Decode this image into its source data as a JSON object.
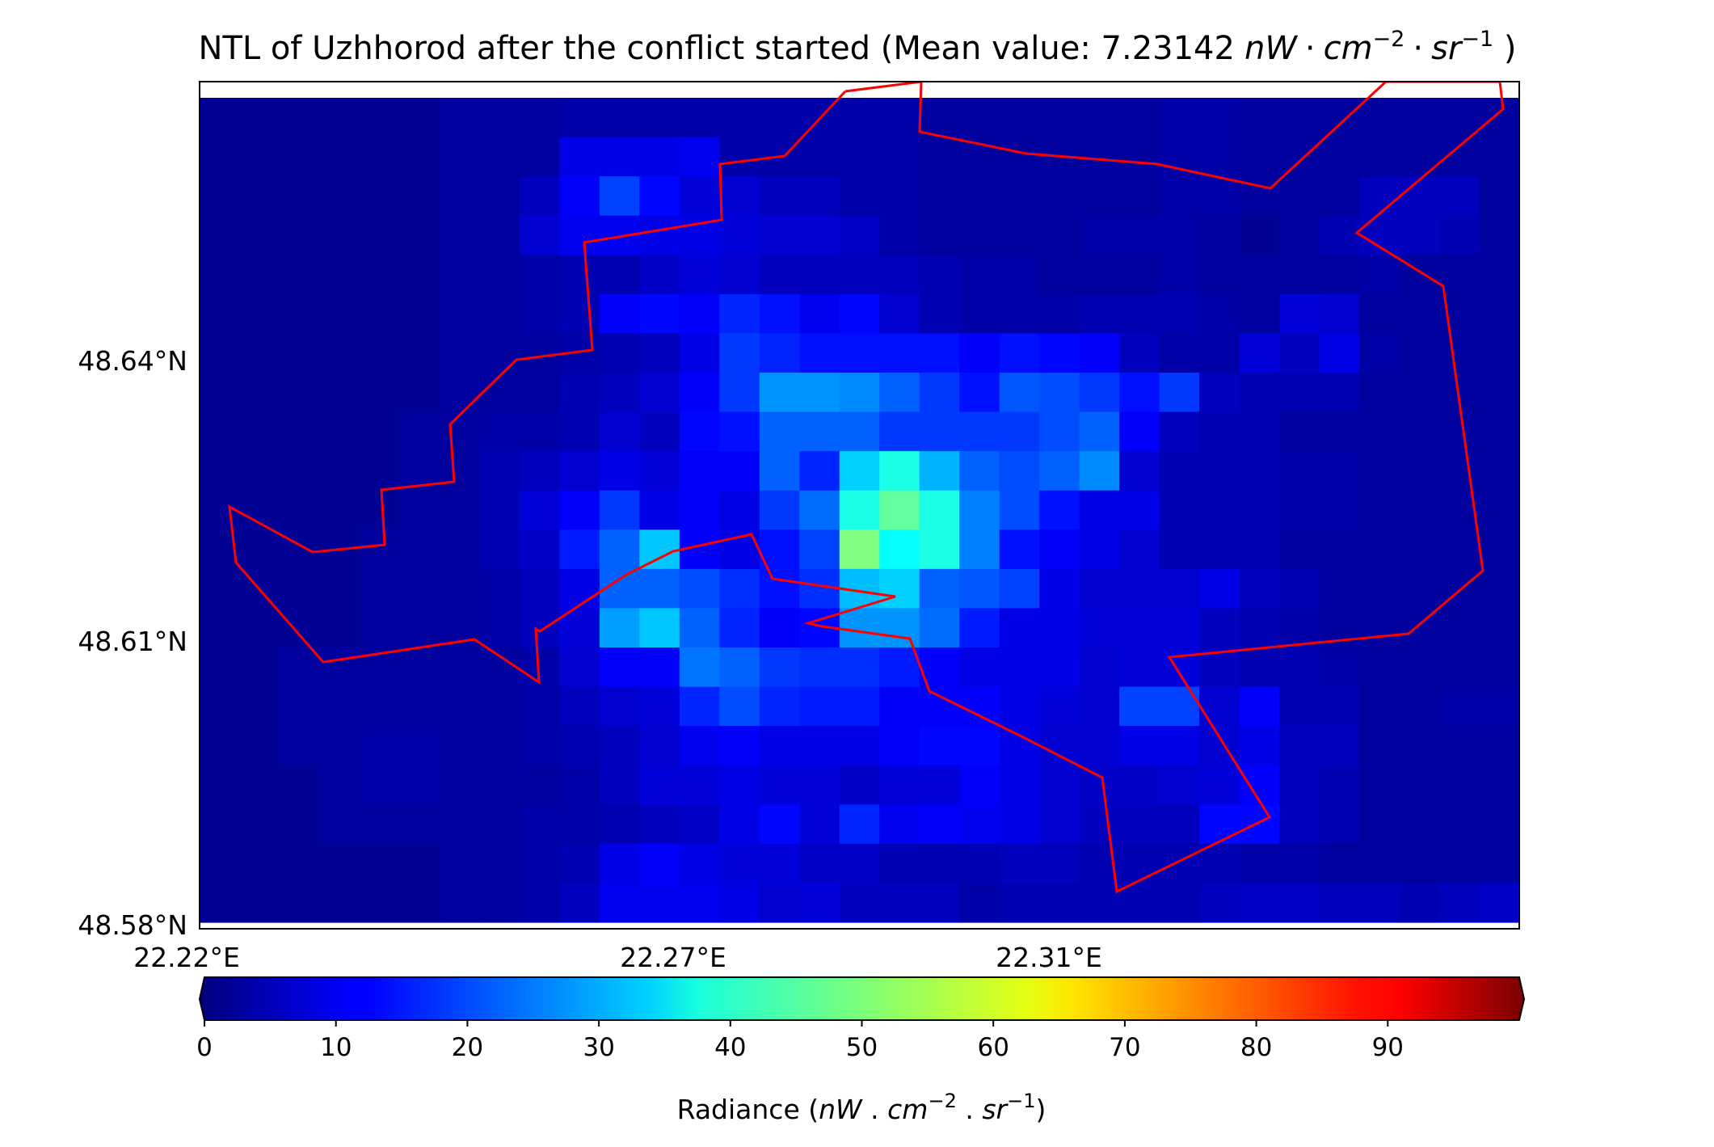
{
  "chart_data": {
    "type": "heatmap",
    "title": {
      "prefix": "NTL of Uzhhorod after the conflict started (Mean value: ",
      "value": "7.23142",
      "unit_nW": "nW",
      "unit_cm": "cm",
      "unit_sr": "sr",
      "exp_cm": "−2",
      "exp_sr": "−1",
      "dot": "·",
      "suffix": " )"
    },
    "x_ticks": [
      "22.22°E",
      "22.27°E",
      "22.31°E"
    ],
    "y_ticks": [
      "48.64°N",
      "48.61°N",
      "48.58°N"
    ],
    "colorbar": {
      "colormap": "jet",
      "vmin": 0,
      "vmax": 100,
      "extend": "both",
      "ticks": [
        0,
        10,
        20,
        30,
        40,
        50,
        60,
        70,
        80,
        90
      ],
      "label": {
        "prefix": "Radiance (",
        "nW": "nW",
        "sep": " . ",
        "cm": "cm",
        "exp_cm": "−2",
        "sr": "sr",
        "exp_sr": "−1",
        "suffix": ")"
      }
    },
    "boundary_color": "#ff0000",
    "grid": false,
    "rows": 21,
    "cols": 33,
    "values_note_rows_top_to_bottom": true,
    "values": [
      [
        2,
        2,
        2,
        2,
        2,
        2,
        3,
        3,
        3,
        4,
        4,
        4,
        4,
        4,
        4,
        4,
        4,
        4,
        3,
        3,
        3,
        3,
        3,
        3,
        4,
        4,
        3,
        3,
        3,
        3,
        3,
        3,
        3
      ],
      [
        2,
        2,
        2,
        2,
        2,
        2,
        3,
        3,
        3,
        10,
        10,
        10,
        11,
        4,
        4,
        4,
        4,
        4,
        3,
        3,
        3,
        3,
        3,
        3,
        4,
        4,
        3,
        3,
        3,
        3,
        3,
        3,
        3
      ],
      [
        2,
        2,
        2,
        2,
        2,
        2,
        3,
        3,
        6,
        12,
        19,
        13,
        9,
        8,
        6,
        6,
        4,
        4,
        3,
        3,
        3,
        3,
        3,
        3,
        4,
        4,
        3,
        3,
        3,
        6,
        6,
        6,
        3
      ],
      [
        2,
        2,
        2,
        2,
        2,
        2,
        3,
        3,
        8,
        11,
        11,
        10,
        10,
        9,
        8,
        8,
        7,
        4,
        3,
        3,
        3,
        3,
        4,
        4,
        4,
        3,
        2,
        3,
        5,
        6,
        6,
        5,
        3
      ],
      [
        2,
        2,
        2,
        2,
        2,
        2,
        3,
        3,
        4,
        5,
        5,
        7,
        9,
        8,
        6,
        6,
        6,
        6,
        5,
        4,
        4,
        3,
        3,
        3,
        4,
        3,
        3,
        3,
        3,
        4,
        3,
        3,
        3
      ],
      [
        2,
        2,
        2,
        2,
        2,
        2,
        3,
        3,
        4,
        5,
        12,
        13,
        12,
        16,
        14,
        11,
        13,
        8,
        5,
        4,
        4,
        4,
        5,
        5,
        5,
        4,
        3,
        9,
        8,
        3,
        3,
        3,
        3
      ],
      [
        2,
        2,
        2,
        2,
        2,
        2,
        3,
        3,
        3,
        4,
        5,
        6,
        10,
        18,
        16,
        14,
        14,
        14,
        14,
        12,
        14,
        13,
        12,
        6,
        4,
        4,
        9,
        6,
        10,
        4,
        3,
        3,
        3
      ],
      [
        2,
        2,
        2,
        2,
        2,
        2,
        3,
        3,
        3,
        5,
        6,
        8,
        12,
        18,
        27,
        27,
        26,
        22,
        18,
        14,
        21,
        20,
        18,
        14,
        18,
        6,
        5,
        5,
        5,
        3,
        3,
        3,
        3
      ],
      [
        2,
        2,
        2,
        2,
        2,
        3,
        3,
        4,
        4,
        5,
        8,
        6,
        13,
        14,
        22,
        22,
        22,
        18,
        18,
        18,
        18,
        20,
        22,
        12,
        6,
        5,
        5,
        3,
        3,
        3,
        3,
        3,
        3
      ],
      [
        2,
        2,
        2,
        2,
        2,
        3,
        3,
        5,
        6,
        8,
        10,
        9,
        12,
        12,
        22,
        16,
        33,
        40,
        30,
        22,
        20,
        22,
        26,
        8,
        5,
        5,
        5,
        4,
        4,
        3,
        3,
        3,
        3
      ],
      [
        2,
        2,
        2,
        2,
        2,
        3,
        3,
        5,
        9,
        12,
        18,
        10,
        12,
        10,
        18,
        23,
        40,
        47,
        40,
        25,
        20,
        14,
        10,
        10,
        5,
        5,
        5,
        4,
        4,
        3,
        3,
        3,
        3
      ],
      [
        2,
        2,
        2,
        2,
        3,
        3,
        3,
        5,
        7,
        15,
        22,
        32,
        12,
        10,
        14,
        19,
        50,
        38,
        40,
        25,
        14,
        12,
        10,
        8,
        5,
        5,
        5,
        3,
        3,
        3,
        3,
        3,
        3
      ],
      [
        2,
        2,
        2,
        2,
        3,
        3,
        3,
        4,
        6,
        10,
        22,
        22,
        20,
        17,
        14,
        17,
        31,
        33,
        22,
        21,
        19,
        10,
        8,
        8,
        8,
        10,
        6,
        5,
        3,
        3,
        3,
        3,
        3
      ],
      [
        2,
        2,
        2,
        2,
        3,
        3,
        3,
        4,
        6,
        9,
        28,
        32,
        22,
        16,
        12,
        13,
        27,
        27,
        23,
        15,
        10,
        10,
        9,
        9,
        9,
        6,
        5,
        4,
        3,
        3,
        3,
        3,
        3
      ],
      [
        2,
        2,
        3,
        3,
        3,
        3,
        3,
        3,
        4,
        8,
        12,
        12,
        24,
        22,
        18,
        17,
        17,
        15,
        12,
        10,
        10,
        10,
        8,
        9,
        9,
        6,
        5,
        5,
        4,
        3,
        3,
        3,
        3
      ],
      [
        2,
        2,
        3,
        3,
        3,
        3,
        3,
        3,
        4,
        6,
        8,
        9,
        16,
        20,
        16,
        15,
        15,
        12,
        12,
        12,
        10,
        9,
        8,
        19,
        19,
        8,
        12,
        5,
        5,
        3,
        3,
        4,
        4
      ],
      [
        2,
        2,
        3,
        3,
        4,
        4,
        3,
        3,
        4,
        5,
        6,
        8,
        11,
        12,
        10,
        10,
        10,
        12,
        13,
        13,
        10,
        8,
        8,
        10,
        10,
        8,
        10,
        6,
        6,
        3,
        3,
        3,
        3
      ],
      [
        2,
        2,
        2,
        3,
        4,
        4,
        3,
        3,
        3,
        4,
        6,
        9,
        9,
        10,
        9,
        9,
        7,
        9,
        9,
        12,
        10,
        8,
        7,
        7,
        8,
        9,
        12,
        6,
        5,
        3,
        3,
        3,
        3
      ],
      [
        2,
        2,
        2,
        3,
        3,
        3,
        3,
        3,
        4,
        4,
        5,
        6,
        7,
        10,
        13,
        9,
        16,
        11,
        12,
        11,
        10,
        8,
        6,
        6,
        6,
        13,
        13,
        6,
        5,
        3,
        3,
        3,
        3
      ],
      [
        2,
        2,
        2,
        2,
        2,
        2,
        3,
        3,
        4,
        5,
        10,
        12,
        10,
        9,
        9,
        7,
        7,
        5,
        5,
        5,
        6,
        6,
        5,
        5,
        5,
        5,
        4,
        4,
        3,
        3,
        3,
        3,
        3
      ],
      [
        2,
        2,
        2,
        2,
        2,
        2,
        3,
        3,
        4,
        6,
        11,
        11,
        11,
        10,
        8,
        9,
        6,
        6,
        6,
        4,
        5,
        5,
        5,
        5,
        5,
        6,
        7,
        7,
        6,
        6,
        5,
        6,
        7
      ]
    ]
  }
}
